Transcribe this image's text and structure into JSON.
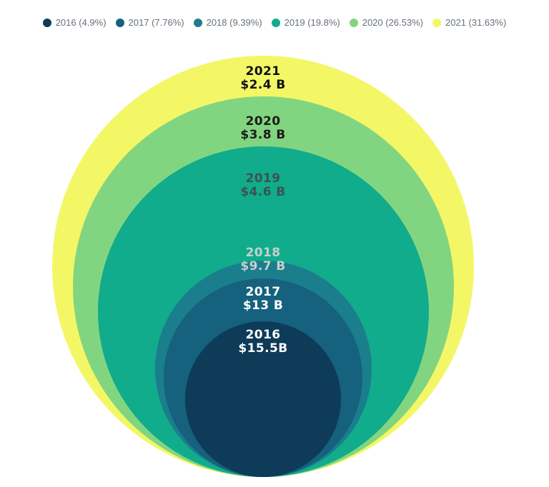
{
  "chart_data": {
    "type": "nested-circles",
    "title": "",
    "subtitle": "",
    "legend_position": "top-center",
    "layout_hint": "concentric circles, bottom-aligned (tangent at common bottom point), sized by percent share",
    "background_color": "#ffffff",
    "legend_text_color": "#66717c",
    "series": [
      {
        "year": "2016",
        "value_label": "$15.5B",
        "value_billions": 15.5,
        "percent": 4.9,
        "legend_label": "2016 (4.9%)",
        "color": "#0d3b58",
        "text_color": "#ffffff"
      },
      {
        "year": "2017",
        "value_label": "$13 B",
        "value_billions": 13,
        "percent": 7.76,
        "legend_label": "2017 (7.76%)",
        "color": "#15617e",
        "text_color": "#ffffff"
      },
      {
        "year": "2018",
        "value_label": "$9.7 B",
        "value_billions": 9.7,
        "percent": 9.39,
        "legend_label": "2018 (9.39%)",
        "color": "#1b7e8c",
        "text_color": "#c9ced0"
      },
      {
        "year": "2019",
        "value_label": "$4.6 B",
        "value_billions": 4.6,
        "percent": 19.8,
        "legend_label": "2019 (19.8%)",
        "color": "#10ac8c",
        "text_color": "#3d534f"
      },
      {
        "year": "2020",
        "value_label": "$3.8 B",
        "value_billions": 3.8,
        "percent": 26.53,
        "legend_label": "2020 (26.53%)",
        "color": "#82d580",
        "text_color": "#1b1b1b"
      },
      {
        "year": "2021",
        "value_label": "$2.4 B",
        "value_billions": 2.4,
        "percent": 31.63,
        "legend_label": "2021 (31.63%)",
        "color": "#f3f766",
        "text_color": "#111111"
      }
    ]
  }
}
